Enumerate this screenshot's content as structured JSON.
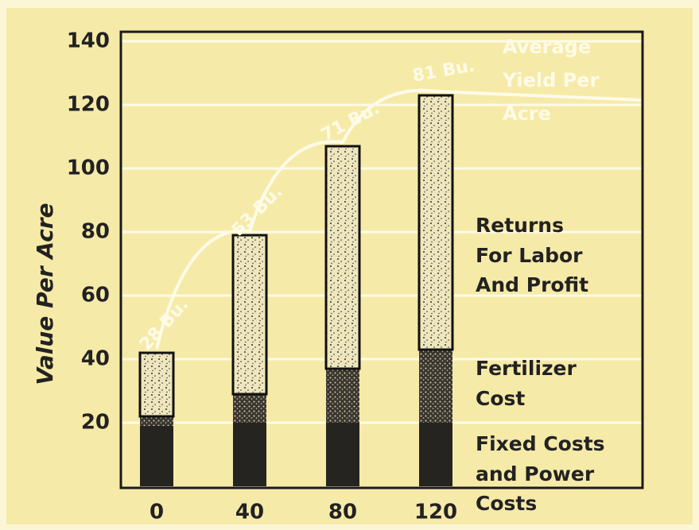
{
  "chart_data": {
    "type": "stacked_bar",
    "y_label": "Value Per Acre",
    "categories": [
      "0",
      "40",
      "80",
      "120"
    ],
    "series": [
      {
        "name": "Fixed Costs and Power Costs",
        "color": "#262420",
        "values": [
          19,
          20,
          20,
          20
        ]
      },
      {
        "name": "Fertilizer Cost",
        "color": "#5a5548",
        "values": [
          3,
          9,
          17,
          23
        ]
      },
      {
        "name": "Returns For Labor And Profit",
        "color": "#efe6bd",
        "values": [
          20,
          50,
          70,
          80
        ]
      }
    ],
    "yield_labels": [
      "28 Bu.",
      "53 Bu.",
      "71 Bu.",
      "81 Bu."
    ],
    "annotation": [
      "Average",
      "Yield Per",
      "Acre"
    ],
    "ylim": [
      0,
      140
    ],
    "yticks": [
      20,
      40,
      60,
      80,
      100,
      120,
      140
    ],
    "grid": true,
    "background": "#f6eaa8"
  }
}
